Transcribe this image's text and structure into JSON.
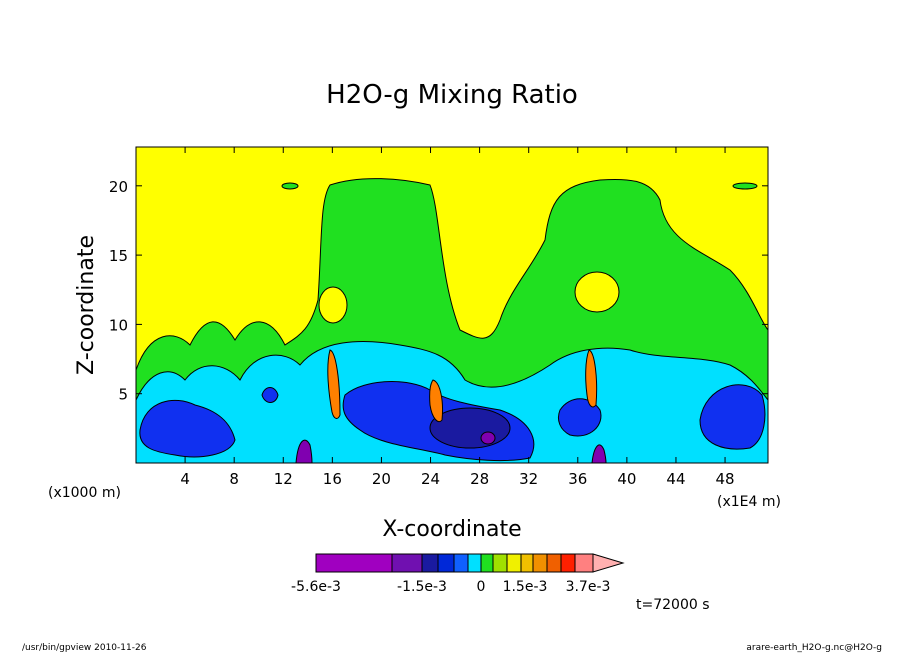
{
  "chart_data": {
    "type": "heatmap",
    "title": "H2O-g Mixing Ratio",
    "xlabel": "X-coordinate",
    "ylabel": "Z-coordinate",
    "x_unit_left": "(x1000 m)",
    "x_unit_right": "(x1E4 m)",
    "xlim": [
      0,
      51.5
    ],
    "ylim": [
      0,
      22.8
    ],
    "x_ticks": [
      "4",
      "8",
      "12",
      "16",
      "20",
      "24",
      "28",
      "32",
      "36",
      "40",
      "44",
      "48"
    ],
    "y_ticks": [
      "5",
      "10",
      "15",
      "20"
    ],
    "grid": false,
    "colorbar": {
      "tick_labels": [
        "-5.6e-3",
        "-1.5e-3",
        "0",
        "1.5e-3",
        "3.7e-3"
      ],
      "levels": [
        "#a000c0",
        "#7010b0",
        "#1a1aa0",
        "#0028d8",
        "#1060ff",
        "#00e0ff",
        "#20e020",
        "#a0e000",
        "#f0f000",
        "#f0c000",
        "#f09000",
        "#f06000",
        "#ff2000",
        "#ff8080",
        "#ffb0b0"
      ]
    },
    "time_label": "t=72000 s",
    "colors": {
      "background_field": "#ffff00",
      "mid_field": "#20e020",
      "cyan": "#00e0ff",
      "blue": "#1030f0",
      "dark_blue": "#1a1aa0",
      "purple": "#8000b0",
      "orange": "#ff8000"
    }
  },
  "footer": {
    "left": "/usr/bin/gpview   2010-11-26",
    "right": "arare-earth_H2O-g.nc@H2O-g"
  }
}
